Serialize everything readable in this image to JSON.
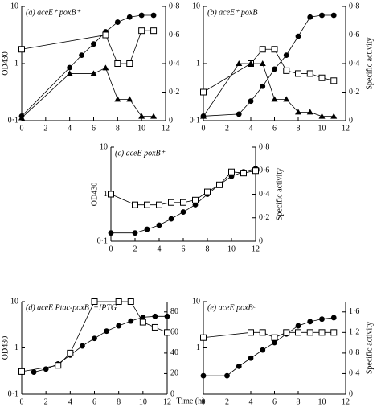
{
  "chart_data": [
    {
      "type": "line",
      "title": "(a) aceE⁺ poxB⁺",
      "y_label": "OD430",
      "xlim": [
        0,
        12
      ],
      "xticks": [
        0,
        2,
        4,
        6,
        8,
        10,
        12
      ],
      "log_y": true,
      "ylim": [
        0.1,
        10
      ],
      "yticks": [
        {
          "value": 0.1,
          "label": "0·1"
        },
        1,
        10
      ],
      "y2lim": [
        0,
        0.8
      ],
      "y2ticks": [
        0,
        {
          "value": 0.2,
          "label": "0·2"
        },
        {
          "value": 0.4,
          "label": "0·4"
        },
        {
          "value": 0.6,
          "label": "0·6"
        },
        {
          "value": 0.8,
          "label": "0·8"
        }
      ],
      "series": [
        {
          "marker": "circle",
          "color": "#000000",
          "axis": "y",
          "x": [
            0,
            4,
            5,
            6,
            7,
            8,
            9,
            10,
            11
          ],
          "values": [
            0.12,
            0.85,
            1.4,
            2.2,
            3.6,
            5.3,
            6.5,
            7,
            7
          ]
        },
        {
          "marker": "square",
          "color": "#000000",
          "axis": "y2",
          "x": [
            0,
            7,
            8,
            9,
            10,
            11
          ],
          "values": [
            0.5,
            0.6,
            0.4,
            0.4,
            0.63,
            0.63
          ]
        },
        {
          "marker": "triangle",
          "color": "#000000",
          "axis": "y2",
          "x": [
            0,
            4,
            6,
            7,
            8,
            9,
            10,
            11
          ],
          "values": [
            0.02,
            0.33,
            0.33,
            0.37,
            0.15,
            0.15,
            0.03,
            0.03
          ]
        }
      ]
    },
    {
      "type": "line",
      "title": "(b) aceE⁺ poxB",
      "y2_label": "Specific activity",
      "xlim": [
        0,
        12
      ],
      "xticks": [
        0,
        2,
        4,
        6,
        8,
        10,
        12
      ],
      "log_y": true,
      "ylim": [
        0.1,
        10
      ],
      "yticks": [
        {
          "value": 0.1,
          "label": "0·1"
        },
        1,
        10
      ],
      "y2lim": [
        0,
        0.8
      ],
      "y2ticks": [
        0,
        {
          "value": 0.2,
          "label": "0·2"
        },
        {
          "value": 0.4,
          "label": "0·4"
        },
        {
          "value": 0.6,
          "label": "0·6"
        },
        {
          "value": 0.8,
          "label": "0·8"
        }
      ],
      "series": [
        {
          "marker": "circle",
          "color": "#000000",
          "axis": "y",
          "x": [
            0,
            3,
            4,
            5,
            6,
            7,
            8,
            9,
            10,
            11
          ],
          "values": [
            0.12,
            0.13,
            0.22,
            0.4,
            0.8,
            1.4,
            3,
            6.5,
            7,
            7
          ]
        },
        {
          "marker": "square",
          "color": "#000000",
          "axis": "y2",
          "x": [
            0,
            4,
            5,
            6,
            7,
            8,
            9,
            10,
            11
          ],
          "values": [
            0.2,
            0.4,
            0.5,
            0.5,
            0.35,
            0.33,
            0.33,
            0.3,
            0.28
          ]
        },
        {
          "marker": "triangle",
          "color": "#000000",
          "axis": "y2",
          "x": [
            0,
            3,
            4,
            5,
            6,
            7,
            8,
            9,
            10,
            11
          ],
          "values": [
            0.03,
            0.4,
            0.4,
            0.4,
            0.15,
            0.15,
            0.06,
            0.06,
            0.03,
            0.03
          ]
        }
      ]
    },
    {
      "type": "line",
      "title": "(c) aceE poxB⁺",
      "y_label": "OD430",
      "y2_label": "Specific activity",
      "xlim": [
        0,
        12
      ],
      "xticks": [
        0,
        2,
        4,
        6,
        8,
        10,
        12
      ],
      "log_y": true,
      "ylim": [
        0.1,
        10
      ],
      "yticks": [
        {
          "value": 0.1,
          "label": "0·1"
        },
        1,
        10
      ],
      "y2lim": [
        0,
        0.8
      ],
      "y2ticks": [
        0,
        {
          "value": 0.2,
          "label": "0·2"
        },
        {
          "value": 0.4,
          "label": "0·4"
        },
        {
          "value": 0.6,
          "label": "0·6"
        },
        {
          "value": 0.8,
          "label": "0·8"
        }
      ],
      "series": [
        {
          "marker": "circle",
          "color": "#000000",
          "axis": "y",
          "x": [
            0,
            2,
            3,
            4,
            5,
            6,
            7,
            8,
            9,
            10,
            11,
            12
          ],
          "values": [
            0.15,
            0.15,
            0.18,
            0.22,
            0.3,
            0.42,
            0.6,
            1,
            1.6,
            2.4,
            3,
            3.5
          ]
        },
        {
          "marker": "square",
          "color": "#000000",
          "axis": "y2",
          "x": [
            0,
            2,
            3,
            4,
            5,
            6,
            7,
            8,
            9,
            10,
            11,
            12
          ],
          "values": [
            0.4,
            0.31,
            0.31,
            0.31,
            0.33,
            0.33,
            0.35,
            0.42,
            0.48,
            0.59,
            0.58,
            0.6
          ]
        }
      ]
    },
    {
      "type": "line",
      "title": "(d) aceE Ptac-poxB⁺+IPTG",
      "y_label": "OD430",
      "x_label": "Time (h)",
      "xlim": [
        0,
        12
      ],
      "xticks": [
        0,
        2,
        4,
        6,
        8,
        10,
        12
      ],
      "log_y": true,
      "ylim": [
        0.1,
        10
      ],
      "yticks": [
        {
          "value": 0.1,
          "label": "0·1"
        },
        1,
        10
      ],
      "y2lim": [
        0,
        90
      ],
      "y2ticks": [
        0,
        20,
        40,
        60,
        80
      ],
      "series": [
        {
          "marker": "circle",
          "color": "#000000",
          "axis": "y",
          "x": [
            0,
            1,
            2,
            3,
            4,
            5,
            6,
            7,
            8,
            9,
            10,
            11,
            12
          ],
          "values": [
            0.3,
            0.3,
            0.35,
            0.45,
            0.7,
            1.1,
            1.6,
            2.3,
            3,
            3.8,
            4.6,
            4.8,
            4.8
          ]
        },
        {
          "marker": "square",
          "color": "#000000",
          "axis": "y2",
          "x": [
            0,
            3,
            4,
            6,
            8,
            9,
            10,
            11,
            12
          ],
          "values": [
            22,
            28,
            40,
            90,
            90,
            90,
            70,
            65,
            60
          ]
        }
      ]
    },
    {
      "type": "line",
      "title": "(e) aceE poxBᶜ",
      "y2_label": "Specific activity",
      "xlim": [
        0,
        12
      ],
      "xticks": [
        0,
        2,
        4,
        6,
        8,
        10,
        12
      ],
      "log_y": true,
      "ylim": [
        0.1,
        10
      ],
      "yticks": [
        1,
        10
      ],
      "y2lim": [
        0,
        1.8
      ],
      "y2ticks": [
        0,
        {
          "value": 0.4,
          "label": "0·4"
        },
        {
          "value": 0.8,
          "label": "0·8"
        },
        {
          "value": 1.2,
          "label": "1·2"
        },
        {
          "value": 1.6,
          "label": "1·6"
        }
      ],
      "series": [
        {
          "marker": "circle",
          "color": "#000000",
          "axis": "y",
          "x": [
            0,
            2,
            3,
            4,
            5,
            6,
            7,
            8,
            9,
            10,
            11
          ],
          "values": [
            0.25,
            0.25,
            0.4,
            0.6,
            0.9,
            1.3,
            2,
            3,
            3.7,
            4.2,
            4.5
          ]
        },
        {
          "marker": "square",
          "color": "#000000",
          "axis": "y2",
          "x": [
            0,
            4,
            5,
            6,
            7,
            8,
            9,
            10,
            11
          ],
          "values": [
            1.1,
            1.2,
            1.2,
            1.1,
            1.2,
            1.2,
            1.2,
            1.2,
            1.2
          ]
        }
      ]
    }
  ]
}
